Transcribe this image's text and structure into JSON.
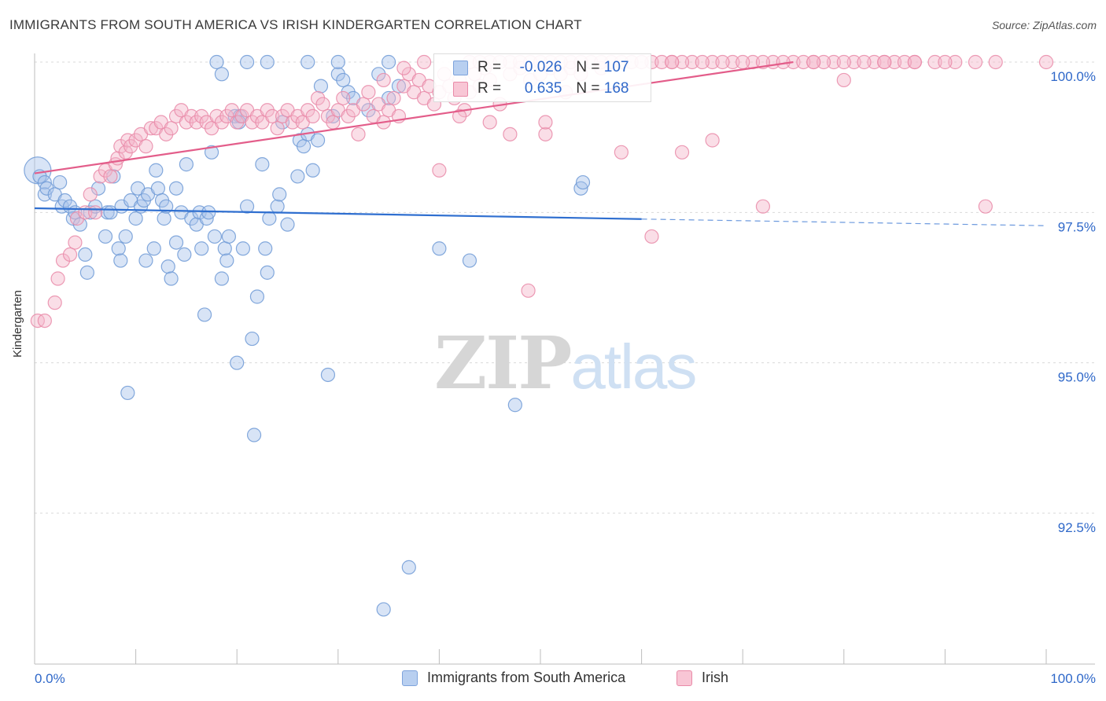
{
  "title": "IMMIGRANTS FROM SOUTH AMERICA VS IRISH KINDERGARTEN CORRELATION CHART",
  "source": "Source: ZipAtlas.com",
  "watermark": {
    "part1": "ZIP",
    "part2": "atlas"
  },
  "colors": {
    "blue_fill": "#a9c4ea",
    "blue_stroke": "#6f9ad6",
    "blue_line": "#2f6fd0",
    "pink_fill": "#f5b6c9",
    "pink_stroke": "#e98aa8",
    "pink_line": "#e35d8a",
    "axis_text": "#2f68c9",
    "grid": "#d9d9d9"
  },
  "legend": {
    "series1": {
      "r_label": "R =",
      "r_value": "-0.026",
      "n_label": "N =",
      "n_value": "107"
    },
    "series2": {
      "r_label": "R =",
      "r_value": "0.635",
      "n_label": "N =",
      "n_value": "168"
    }
  },
  "bottom_legend": {
    "series1": "Immigrants from South America",
    "series2": "Irish"
  },
  "chart_data": {
    "type": "scatter",
    "title": "IMMIGRANTS FROM SOUTH AMERICA VS IRISH KINDERGARTEN CORRELATION CHART",
    "xlabel": "",
    "ylabel": "Kindergarten",
    "xlim": [
      0,
      100
    ],
    "ylim": [
      90.5,
      100.5
    ],
    "x_tick_labels": [
      "0.0%",
      "100.0%"
    ],
    "y_ticks": [
      92.5,
      95.0,
      97.5,
      100.0
    ],
    "y_tick_labels": [
      "92.5%",
      "95.0%",
      "97.5%",
      "100.0%"
    ],
    "grid": "horizontal dashed",
    "legend_position": "top-center",
    "series": [
      {
        "name": "Immigrants from South America",
        "r": -0.026,
        "n": 107,
        "trend": {
          "x0": 0,
          "y0": 97.57,
          "x1": 60,
          "y1": 97.39,
          "dashed_to_x": 100,
          "dashed_to_y": 97.28
        },
        "points": [
          [
            0.3,
            98.2
          ],
          [
            0.5,
            98.1
          ],
          [
            1,
            98.0
          ],
          [
            1,
            97.8
          ],
          [
            1.2,
            97.9
          ],
          [
            2,
            97.8
          ],
          [
            2.5,
            98.0
          ],
          [
            2.7,
            97.6
          ],
          [
            3,
            97.7
          ],
          [
            3.5,
            97.6
          ],
          [
            3.8,
            97.4
          ],
          [
            4,
            97.5
          ],
          [
            4.5,
            97.3
          ],
          [
            5,
            96.8
          ],
          [
            5.2,
            96.5
          ],
          [
            5.5,
            97.5
          ],
          [
            6,
            97.6
          ],
          [
            6.3,
            97.9
          ],
          [
            7,
            97.1
          ],
          [
            7.2,
            97.5
          ],
          [
            7.5,
            97.5
          ],
          [
            7.8,
            98.1
          ],
          [
            8.3,
            96.9
          ],
          [
            8.5,
            96.7
          ],
          [
            8.6,
            97.6
          ],
          [
            9,
            97.1
          ],
          [
            9.2,
            94.5
          ],
          [
            9.5,
            97.7
          ],
          [
            10,
            97.4
          ],
          [
            10.2,
            97.9
          ],
          [
            10.5,
            97.6
          ],
          [
            10.8,
            97.7
          ],
          [
            11,
            96.7
          ],
          [
            11.2,
            97.8
          ],
          [
            11.8,
            96.9
          ],
          [
            12,
            98.2
          ],
          [
            12.2,
            97.9
          ],
          [
            12.6,
            97.7
          ],
          [
            12.8,
            97.4
          ],
          [
            13,
            97.6
          ],
          [
            13.2,
            96.6
          ],
          [
            13.5,
            96.4
          ],
          [
            14,
            97.9
          ],
          [
            14,
            97.0
          ],
          [
            14.5,
            97.5
          ],
          [
            14.8,
            96.8
          ],
          [
            15,
            98.3
          ],
          [
            15.5,
            97.4
          ],
          [
            16,
            97.3
          ],
          [
            16.3,
            97.5
          ],
          [
            16.5,
            96.9
          ],
          [
            16.8,
            95.8
          ],
          [
            17,
            97.4
          ],
          [
            17.2,
            97.5
          ],
          [
            17.5,
            98.5
          ],
          [
            17.8,
            97.1
          ],
          [
            18.5,
            96.4
          ],
          [
            18.8,
            96.9
          ],
          [
            19,
            96.7
          ],
          [
            19.2,
            97.1
          ],
          [
            19.8,
            99.1
          ],
          [
            20,
            95.0
          ],
          [
            20.3,
            99.1
          ],
          [
            20.6,
            96.9
          ],
          [
            21,
            97.6
          ],
          [
            21.5,
            95.4
          ],
          [
            21.7,
            93.8
          ],
          [
            22,
            96.1
          ],
          [
            22.5,
            98.3
          ],
          [
            22.8,
            96.9
          ],
          [
            23,
            96.5
          ],
          [
            23.2,
            97.4
          ],
          [
            24,
            97.6
          ],
          [
            24.2,
            97.8
          ],
          [
            24.5,
            99.0
          ],
          [
            25,
            97.3
          ],
          [
            26,
            98.1
          ],
          [
            26.2,
            98.7
          ],
          [
            26.6,
            98.6
          ],
          [
            27,
            98.8
          ],
          [
            27.5,
            98.2
          ],
          [
            28,
            98.7
          ],
          [
            28.3,
            99.6
          ],
          [
            29,
            94.8
          ],
          [
            30,
            99.8
          ],
          [
            30.5,
            99.7
          ],
          [
            31,
            99.5
          ],
          [
            31.5,
            99.4
          ],
          [
            33,
            99.2
          ],
          [
            34,
            99.8
          ],
          [
            34.5,
            90.9
          ],
          [
            35,
            99.4
          ],
          [
            37,
            91.6
          ],
          [
            40,
            96.9
          ],
          [
            43,
            96.7
          ],
          [
            47.5,
            94.3
          ],
          [
            54,
            97.9
          ],
          [
            54.2,
            98.0
          ],
          [
            18,
            100.0
          ],
          [
            21,
            100.0
          ],
          [
            23,
            100.0
          ],
          [
            27,
            100.0
          ],
          [
            30,
            100.0
          ],
          [
            35,
            100.0
          ],
          [
            36,
            99.6
          ],
          [
            18.5,
            99.8
          ],
          [
            29.5,
            99.1
          ],
          [
            20.2,
            99.0
          ]
        ]
      },
      {
        "name": "Irish",
        "r": 0.635,
        "n": 168,
        "trend": {
          "x0": 0,
          "y0": 98.15,
          "x1": 75,
          "y1": 100.0
        },
        "points": [
          [
            0.3,
            95.7
          ],
          [
            1,
            95.7
          ],
          [
            2,
            96.0
          ],
          [
            2.3,
            96.4
          ],
          [
            2.8,
            96.7
          ],
          [
            3.5,
            96.8
          ],
          [
            4,
            97.0
          ],
          [
            4.2,
            97.4
          ],
          [
            5,
            97.5
          ],
          [
            5.5,
            97.8
          ],
          [
            6,
            97.5
          ],
          [
            6.5,
            98.1
          ],
          [
            7,
            98.2
          ],
          [
            7.5,
            98.1
          ],
          [
            8,
            98.3
          ],
          [
            8.2,
            98.4
          ],
          [
            8.5,
            98.6
          ],
          [
            9,
            98.5
          ],
          [
            9.2,
            98.7
          ],
          [
            9.5,
            98.6
          ],
          [
            10,
            98.7
          ],
          [
            10.5,
            98.8
          ],
          [
            11,
            98.6
          ],
          [
            11.5,
            98.9
          ],
          [
            12,
            98.9
          ],
          [
            12.5,
            99.0
          ],
          [
            13,
            98.8
          ],
          [
            13.5,
            98.9
          ],
          [
            14,
            99.1
          ],
          [
            14.5,
            99.2
          ],
          [
            15,
            99.0
          ],
          [
            15.5,
            99.1
          ],
          [
            16,
            99.0
          ],
          [
            16.5,
            99.1
          ],
          [
            17,
            99.0
          ],
          [
            17.5,
            98.9
          ],
          [
            18,
            99.1
          ],
          [
            18.5,
            99.0
          ],
          [
            19,
            99.1
          ],
          [
            19.5,
            99.2
          ],
          [
            20,
            99.0
          ],
          [
            20.5,
            99.1
          ],
          [
            21,
            99.2
          ],
          [
            21.5,
            99.0
          ],
          [
            22,
            99.1
          ],
          [
            22.5,
            99.0
          ],
          [
            23,
            99.2
          ],
          [
            23.5,
            99.1
          ],
          [
            24,
            98.9
          ],
          [
            24.5,
            99.1
          ],
          [
            25,
            99.2
          ],
          [
            25.5,
            99.0
          ],
          [
            26,
            99.1
          ],
          [
            26.5,
            99.0
          ],
          [
            27,
            99.2
          ],
          [
            27.5,
            99.1
          ],
          [
            28,
            99.4
          ],
          [
            28.5,
            99.3
          ],
          [
            29,
            99.1
          ],
          [
            29.5,
            99.0
          ],
          [
            30,
            99.2
          ],
          [
            30.5,
            99.4
          ],
          [
            31,
            99.1
          ],
          [
            31.5,
            99.2
          ],
          [
            32,
            98.8
          ],
          [
            32.5,
            99.3
          ],
          [
            33,
            99.5
          ],
          [
            33.5,
            99.1
          ],
          [
            34,
            99.3
          ],
          [
            34.5,
            99.0
          ],
          [
            35,
            99.2
          ],
          [
            35.5,
            99.4
          ],
          [
            36,
            99.1
          ],
          [
            36.5,
            99.6
          ],
          [
            37,
            99.8
          ],
          [
            37.5,
            99.5
          ],
          [
            38,
            99.7
          ],
          [
            38.5,
            99.4
          ],
          [
            39,
            99.6
          ],
          [
            39.5,
            99.3
          ],
          [
            40,
            99.5
          ],
          [
            40.5,
            99.8
          ],
          [
            41,
            99.6
          ],
          [
            41.5,
            99.4
          ],
          [
            42,
            99.7
          ],
          [
            42.5,
            99.2
          ],
          [
            43,
            99.5
          ],
          [
            43.5,
            99.8
          ],
          [
            44,
            99.6
          ],
          [
            44.5,
            99.9
          ],
          [
            45,
            99.7
          ],
          [
            46,
            99.3
          ],
          [
            47,
            99.8
          ],
          [
            48,
            99.9
          ],
          [
            49,
            99.7
          ],
          [
            50,
            99.8
          ],
          [
            50.5,
            98.8
          ],
          [
            51,
            99.9
          ],
          [
            52,
            99.8
          ],
          [
            53,
            99.9
          ],
          [
            54,
            99.8
          ],
          [
            56,
            99.9
          ],
          [
            58,
            98.5
          ],
          [
            61,
            97.1
          ],
          [
            64,
            98.5
          ],
          [
            67,
            98.7
          ],
          [
            72,
            97.6
          ],
          [
            80,
            99.7
          ],
          [
            94,
            97.6
          ],
          [
            40,
            98.2
          ],
          [
            42,
            99.1
          ],
          [
            45,
            99.0
          ],
          [
            47,
            98.8
          ],
          [
            48.8,
            96.2
          ],
          [
            50.5,
            99.0
          ],
          [
            52.5,
            99.5
          ],
          [
            45,
            100.0
          ],
          [
            47,
            100.0
          ],
          [
            49,
            100.0
          ],
          [
            51,
            100.0
          ],
          [
            53,
            100.0
          ],
          [
            55,
            100.0
          ],
          [
            57,
            100.0
          ],
          [
            59,
            100.0
          ],
          [
            61,
            100.0
          ],
          [
            63,
            100.0
          ],
          [
            65,
            100.0
          ],
          [
            67,
            100.0
          ],
          [
            69,
            100.0
          ],
          [
            71,
            100.0
          ],
          [
            73,
            100.0
          ],
          [
            75,
            100.0
          ],
          [
            77,
            100.0
          ],
          [
            79,
            100.0
          ],
          [
            81,
            100.0
          ],
          [
            83,
            100.0
          ],
          [
            85,
            100.0
          ],
          [
            87,
            100.0
          ],
          [
            89,
            100.0
          ],
          [
            91,
            100.0
          ],
          [
            93,
            100.0
          ],
          [
            100,
            100.0
          ],
          [
            62,
            100.0
          ],
          [
            64,
            100.0
          ],
          [
            66,
            100.0
          ],
          [
            68,
            100.0
          ],
          [
            70,
            100.0
          ],
          [
            72,
            100.0
          ],
          [
            74,
            100.0
          ],
          [
            76,
            100.0
          ],
          [
            78,
            100.0
          ],
          [
            82,
            100.0
          ],
          [
            84,
            100.0
          ],
          [
            86,
            100.0
          ],
          [
            54,
            100.0
          ],
          [
            58,
            100.0
          ],
          [
            60,
            100.0
          ],
          [
            46,
            100.0
          ],
          [
            48,
            100.0
          ],
          [
            50,
            100.0
          ],
          [
            52,
            100.0
          ],
          [
            56,
            100.0
          ],
          [
            34.5,
            99.7
          ],
          [
            36.5,
            99.9
          ],
          [
            38.5,
            100.0
          ],
          [
            43,
            100.0
          ],
          [
            44,
            100.0
          ],
          [
            63,
            100.0
          ],
          [
            77,
            100.0
          ],
          [
            80,
            100.0
          ],
          [
            84,
            100.0
          ],
          [
            87,
            100.0
          ],
          [
            90,
            100.0
          ],
          [
            95,
            100.0
          ]
        ]
      }
    ]
  }
}
